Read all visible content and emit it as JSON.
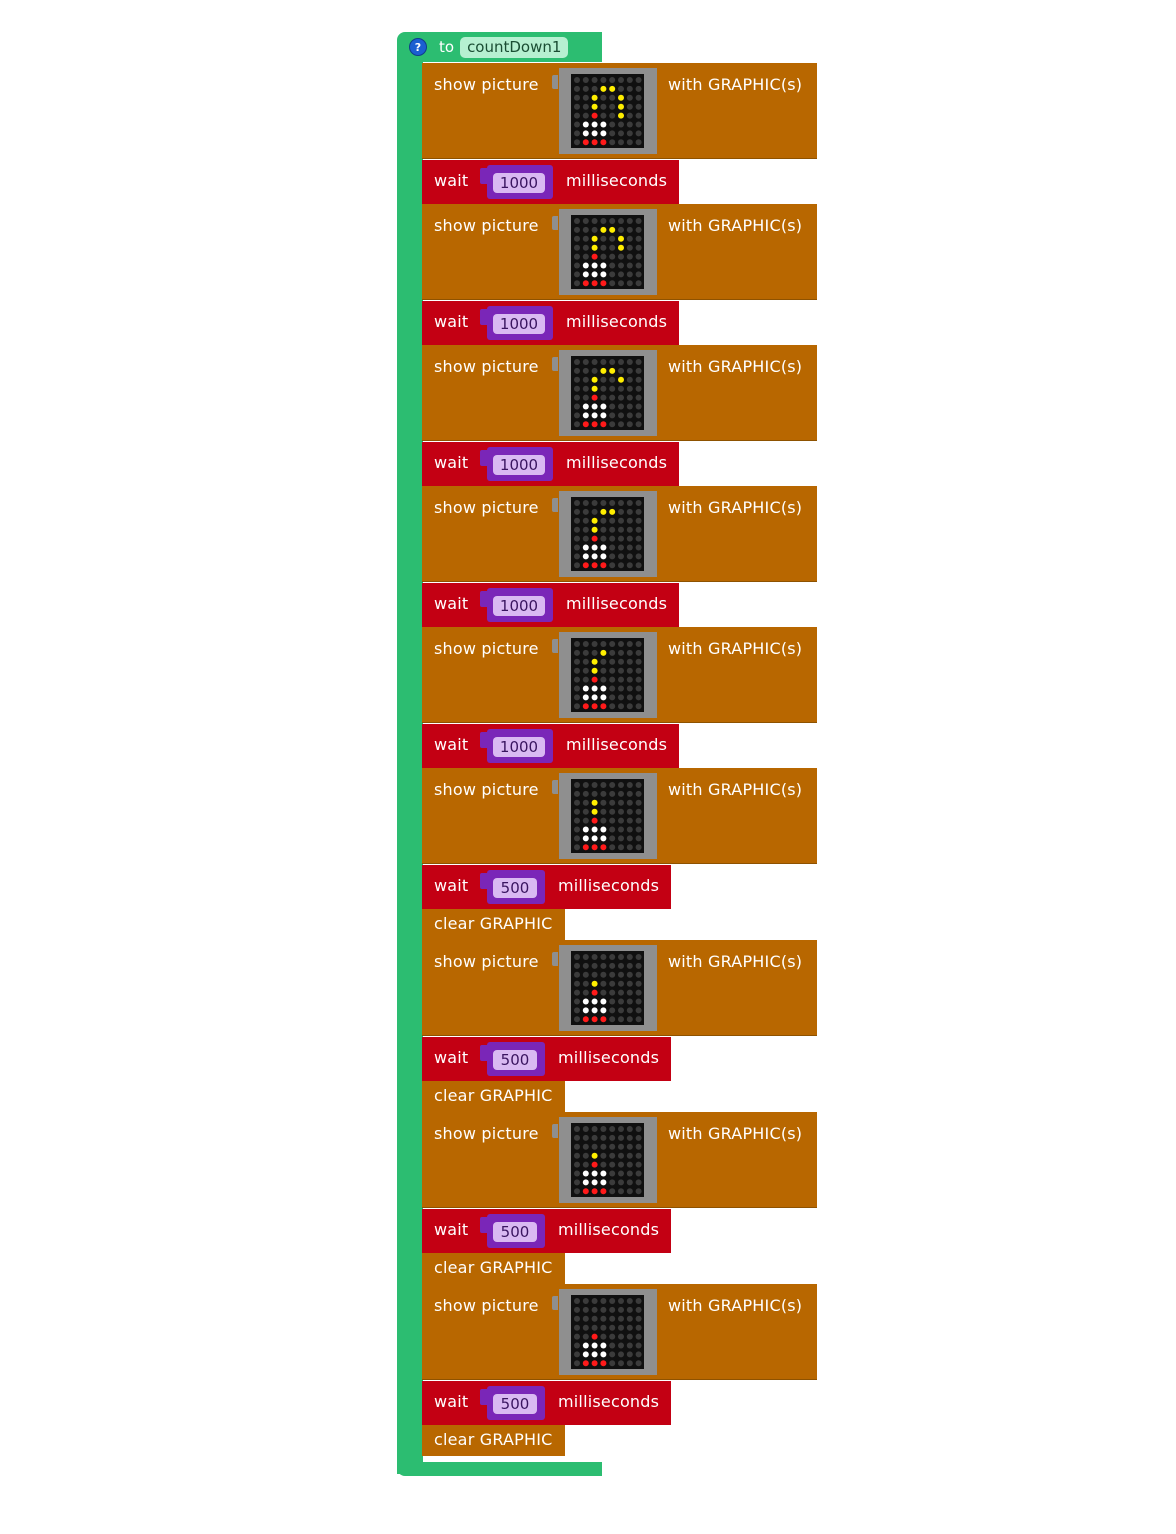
{
  "colors": {
    "procedure": "#2cbd71",
    "show_picture": "#b86700",
    "wait": "#c30013",
    "clear": "#b86700",
    "number_block": "#7a26b8",
    "number_pill": "#d9b9f2",
    "led_off": "#3b3b3b",
    "led_yellow": "#ffee00",
    "led_red": "#ff1a1a",
    "led_white": "#ffffff"
  },
  "procedure": {
    "help_icon": "?",
    "to_label": "to",
    "name": "countDown1"
  },
  "labels": {
    "show_picture": "show picture",
    "with_graphic": "with GRAPHIC(s)",
    "wait": "wait",
    "milliseconds": "milliseconds",
    "clear": "clear GRAPHIC"
  },
  "pictures": [
    [
      "........",
      "...YY...",
      "..Y..Y..",
      "..Y..Y..",
      "..R..Y..",
      ".WWW....",
      ".WWW....",
      ".RRR...."
    ],
    [
      "........",
      "...YY...",
      "..Y..Y..",
      "..Y..Y..",
      "..R.....",
      ".WWW....",
      ".WWW....",
      ".RRR...."
    ],
    [
      "........",
      "...YY...",
      "..Y..Y..",
      "..Y.....",
      "..R.....",
      ".WWW....",
      ".WWW....",
      ".RRR...."
    ],
    [
      "........",
      "...YY...",
      "..Y.....",
      "..Y.....",
      "..R.....",
      ".WWW....",
      ".WWW....",
      ".RRR...."
    ],
    [
      "........",
      "...Y....",
      "..Y.....",
      "..Y.....",
      "..R.....",
      ".WWW....",
      ".WWW....",
      ".RRR...."
    ],
    [
      "........",
      "........",
      "..Y.....",
      "..Y.....",
      "..R.....",
      ".WWW....",
      ".WWW....",
      ".RRR...."
    ],
    [
      "........",
      "........",
      "........",
      "..Y.....",
      "..R.....",
      ".WWW....",
      ".WWW....",
      ".RRR...."
    ],
    [
      "........",
      "........",
      "........",
      "..Y.....",
      "..R.....",
      ".WWW....",
      ".WWW....",
      ".RRR...."
    ],
    [
      "........",
      "........",
      "........",
      "........",
      "..R.....",
      ".WWW....",
      ".WWW....",
      ".RRR...."
    ]
  ],
  "blocks": [
    {
      "kind": "show",
      "picture": 0
    },
    {
      "kind": "wait",
      "value": "1000"
    },
    {
      "kind": "show",
      "picture": 1
    },
    {
      "kind": "wait",
      "value": "1000"
    },
    {
      "kind": "show",
      "picture": 2
    },
    {
      "kind": "wait",
      "value": "1000"
    },
    {
      "kind": "show",
      "picture": 3
    },
    {
      "kind": "wait",
      "value": "1000"
    },
    {
      "kind": "show",
      "picture": 4
    },
    {
      "kind": "wait",
      "value": "1000"
    },
    {
      "kind": "show",
      "picture": 5
    },
    {
      "kind": "wait",
      "value": "500"
    },
    {
      "kind": "clear"
    },
    {
      "kind": "show",
      "picture": 6
    },
    {
      "kind": "wait",
      "value": "500"
    },
    {
      "kind": "clear"
    },
    {
      "kind": "show",
      "picture": 7
    },
    {
      "kind": "wait",
      "value": "500"
    },
    {
      "kind": "clear"
    },
    {
      "kind": "show",
      "picture": 8
    },
    {
      "kind": "wait",
      "value": "500"
    },
    {
      "kind": "clear"
    }
  ]
}
